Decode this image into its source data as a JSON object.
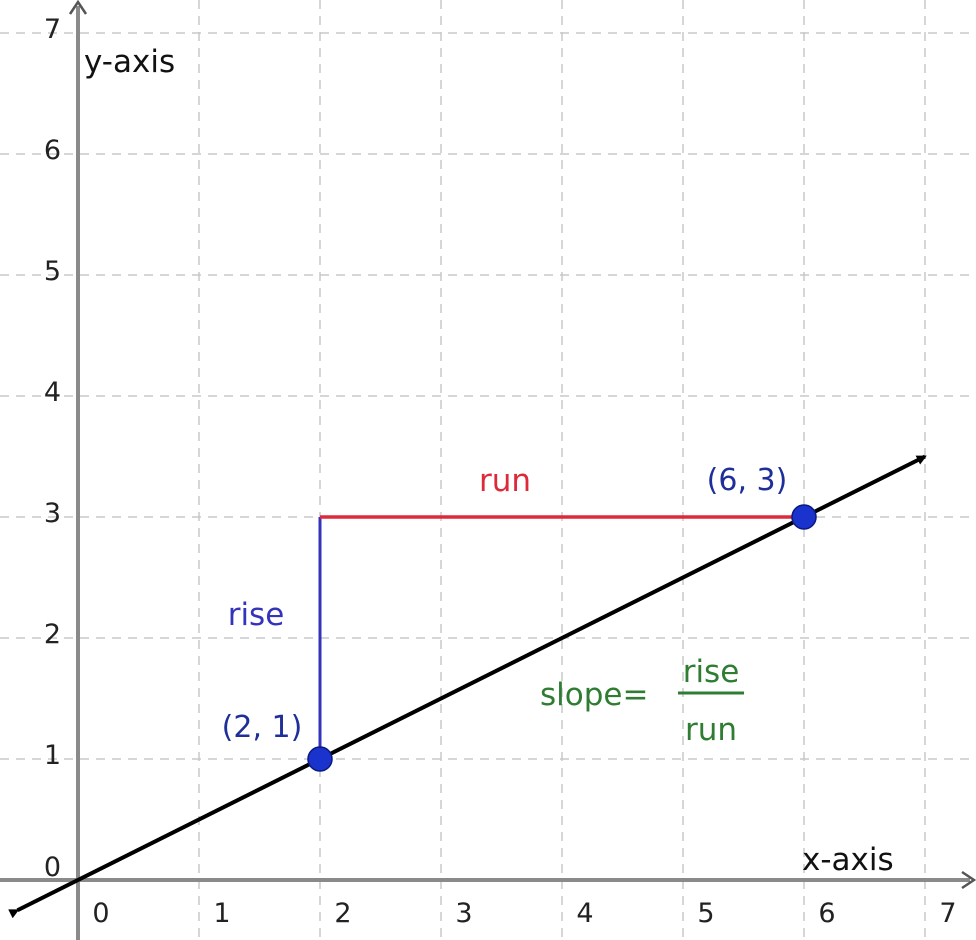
{
  "chart_data": {
    "type": "line",
    "title": "",
    "xlabel": "x-axis",
    "ylabel": "y-axis",
    "xlim": [
      0,
      7
    ],
    "ylim": [
      0,
      7
    ],
    "x_ticks": [
      "0",
      "1",
      "2",
      "3",
      "4",
      "5",
      "6",
      "7"
    ],
    "y_ticks": [
      "0",
      "1",
      "2",
      "3",
      "4",
      "5",
      "6",
      "7"
    ],
    "grid": true,
    "line": {
      "slope": 0.5,
      "intercept": 0,
      "x_range": [
        -0.5,
        7
      ],
      "color": "#000000"
    },
    "points": [
      {
        "x": 2,
        "y": 1,
        "label": "(2, 1)"
      },
      {
        "x": 6,
        "y": 3,
        "label": "(6, 3)"
      }
    ],
    "rise": {
      "label": "rise",
      "from": [
        2,
        1
      ],
      "to": [
        2,
        3
      ],
      "color": "#3333bb"
    },
    "run": {
      "label": "run",
      "from": [
        2,
        3
      ],
      "to": [
        6,
        3
      ],
      "color": "#dd2a3a"
    },
    "formula": {
      "lhs": "slope=",
      "numerator": "rise",
      "denominator": "run",
      "color": "#2e7d32"
    },
    "point_color": "#1a33cc",
    "label_color": "#1f2f9a"
  }
}
